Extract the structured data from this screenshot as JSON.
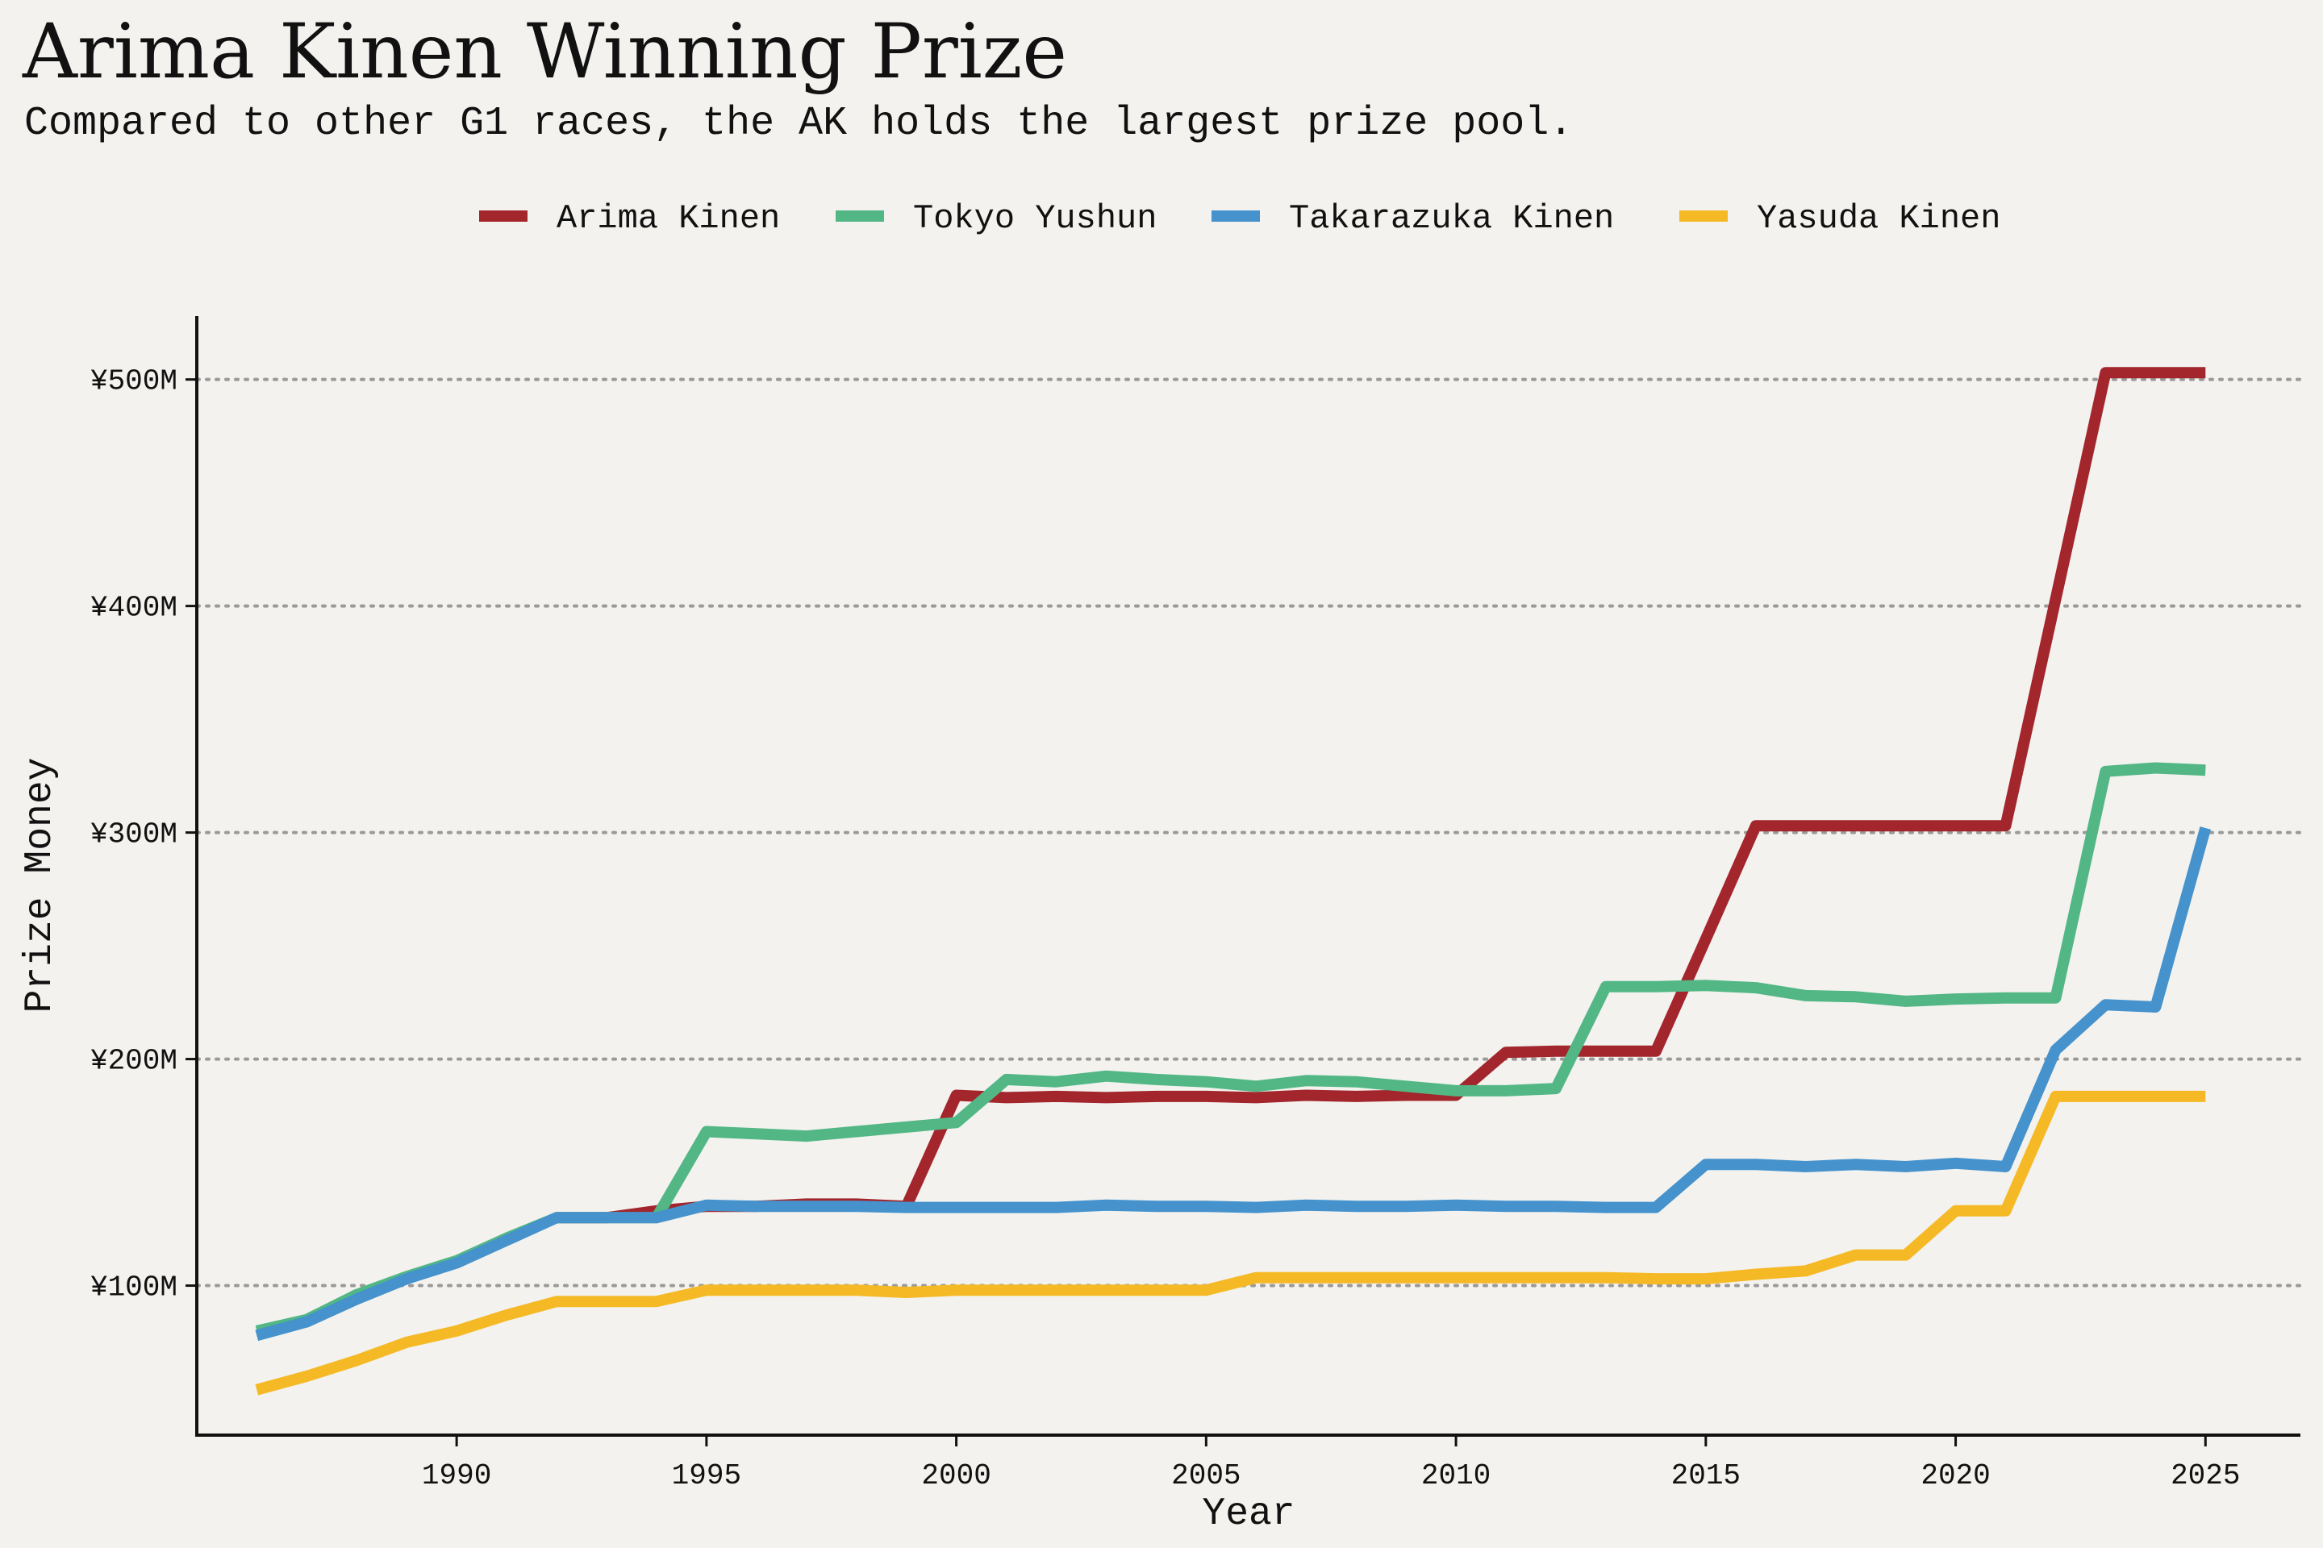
{
  "chart_data": {
    "type": "line",
    "title": "Arima Kinen Winning Prize",
    "subtitle": "Compared to other G1 races, the AK holds the largest prize pool.",
    "xlabel": "Year",
    "ylabel": "Prize Money",
    "xlim": [
      1984.8,
      2026.9
    ],
    "ylim": [
      34,
      528
    ],
    "x_ticks": [
      1990,
      1995,
      2000,
      2005,
      2010,
      2015,
      2020,
      2025
    ],
    "y_ticks": [
      100,
      200,
      300,
      400,
      500
    ],
    "y_tick_labels": [
      "¥100M",
      "¥200M",
      "¥300M",
      "¥400M",
      "¥500M"
    ],
    "grid": "horizontal dotted",
    "legend_position": "top-center",
    "x": [
      1986,
      1987,
      1988,
      1989,
      1990,
      1991,
      1992,
      1993,
      1994,
      1995,
      1996,
      1997,
      1998,
      1999,
      2000,
      2001,
      2002,
      2003,
      2004,
      2005,
      2006,
      2007,
      2008,
      2009,
      2010,
      2011,
      2012,
      2013,
      2014,
      2015,
      2016,
      2017,
      2018,
      2019,
      2020,
      2021,
      2022,
      2023,
      2024,
      2025
    ],
    "series": [
      {
        "name": "Arima Kinen",
        "color": "#a2262c",
        "values": [
          null,
          null,
          null,
          null,
          null,
          null,
          130,
          130,
          133,
          135,
          135,
          136,
          136,
          135,
          184,
          183,
          183.5,
          183,
          183.5,
          183.5,
          183,
          184,
          183.5,
          184,
          184,
          203,
          203.5,
          203.5,
          203.5,
          253,
          303,
          303,
          303,
          303,
          303,
          303,
          403,
          503,
          503,
          503
        ]
      },
      {
        "name": "Tokyo Yushun",
        "color": "#52b785",
        "values": [
          80,
          85,
          96,
          104,
          111,
          121,
          130,
          130,
          130,
          168,
          167,
          166,
          168,
          170,
          172,
          191,
          190,
          192.5,
          191,
          190,
          188,
          190.5,
          190,
          188,
          186,
          186,
          187,
          232,
          232,
          232.5,
          231.5,
          228,
          227.5,
          225.5,
          226.5,
          227,
          227,
          327,
          328.5,
          327.5
        ]
      },
      {
        "name": "Takarazuka Kinen",
        "color": "#4592cd",
        "values": [
          78,
          84,
          94,
          103,
          110,
          120,
          130,
          130,
          130,
          135.5,
          135,
          135,
          135,
          134.5,
          134.5,
          134.5,
          134.5,
          135.5,
          135,
          135,
          134.5,
          135.5,
          135,
          135,
          135.5,
          135,
          135,
          134.5,
          134.5,
          153.5,
          153.5,
          152.5,
          153.5,
          152.5,
          154,
          152.5,
          204,
          224,
          223,
          302
        ]
      },
      {
        "name": "Yasuda Kinen",
        "color": "#f5b925",
        "values": [
          54,
          60,
          67,
          75,
          80,
          87,
          93,
          93,
          93,
          98,
          98,
          98,
          98,
          97,
          98,
          98,
          98,
          98,
          98,
          98,
          103.5,
          103.5,
          103.5,
          103.5,
          103.5,
          103.5,
          103.5,
          103.5,
          103,
          103,
          105,
          106.5,
          113.5,
          113.5,
          133,
          133,
          183.5,
          183.5,
          183.5,
          183.5
        ]
      }
    ]
  }
}
